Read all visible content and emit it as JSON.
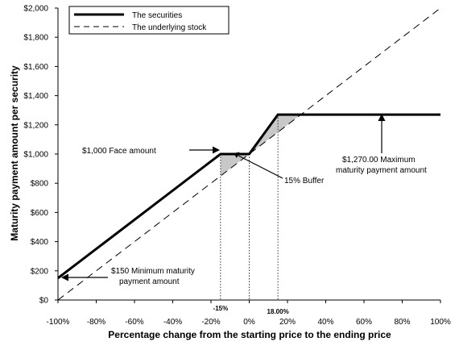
{
  "chart_data": {
    "type": "line",
    "title": "",
    "xlabel": "Percentage change from the starting price to the ending price",
    "ylabel": "Maturity payment amount per security",
    "xlim": [
      -100,
      100
    ],
    "ylim": [
      0,
      2000
    ],
    "x_ticks": [
      "-100%",
      "-80%",
      "-60%",
      "-40%",
      "-20%",
      "0%",
      "20%",
      "40%",
      "60%",
      "80%",
      "100%"
    ],
    "y_ticks": [
      "$0",
      "$200",
      "$400",
      "$600",
      "$800",
      "$1,000",
      "$1,200",
      "$1,400",
      "$1,600",
      "$1,800",
      "$2,000"
    ],
    "legend": {
      "position": "top-left",
      "entries": [
        "The securities",
        "The underlying stock"
      ]
    },
    "series": [
      {
        "name": "The securities",
        "style": "solid",
        "color": "#000000",
        "x": [
          -100,
          -15,
          0,
          15,
          18,
          100
        ],
        "y": [
          150,
          1000,
          1000,
          1270,
          1270,
          1270
        ]
      },
      {
        "name": "The underlying stock",
        "style": "dashed",
        "color": "#000000",
        "x": [
          -100,
          100
        ],
        "y": [
          0,
          2000
        ]
      }
    ],
    "shaded_regions_color": "#c8c8c8",
    "special_ticks": [
      "-15%",
      "18.00%"
    ],
    "annotations": [
      {
        "text": "$1,000 Face amount"
      },
      {
        "text": "15% Buffer"
      },
      {
        "lines": [
          "$1,270.00 Maximum",
          "maturity payment amount"
        ]
      },
      {
        "lines": [
          "$150 Minimum maturity",
          "payment amount"
        ]
      }
    ]
  }
}
